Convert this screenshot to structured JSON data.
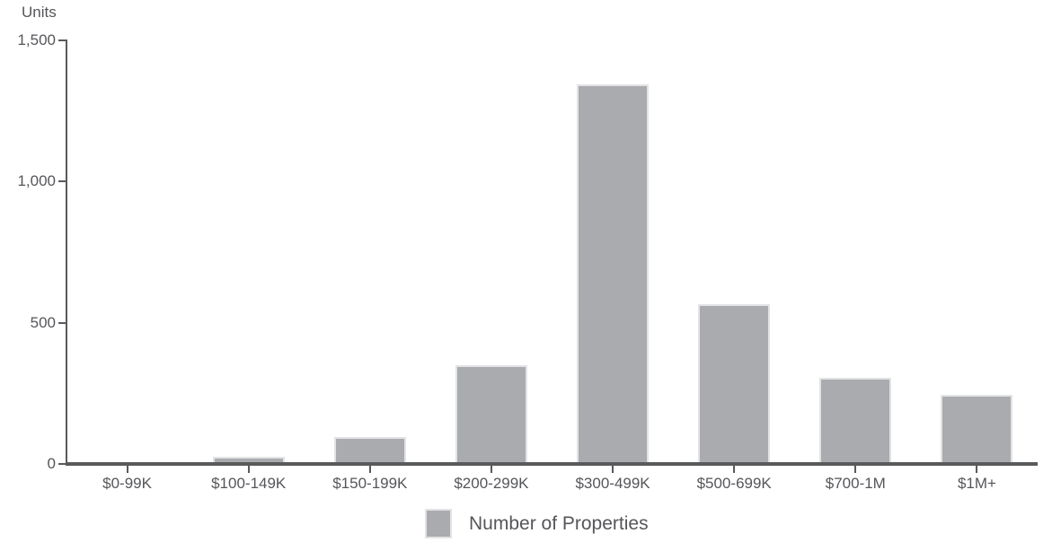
{
  "chart_data": {
    "type": "bar",
    "title": "",
    "ylabel": "Units",
    "xlabel": "",
    "categories": [
      "$0-99K",
      "$100-149K",
      "$150-199K",
      "$200-299K",
      "$300-499K",
      "$500-699K",
      "$700-1M",
      "$1M+"
    ],
    "values": [
      3,
      25,
      95,
      350,
      1345,
      565,
      305,
      245
    ],
    "ylim": [
      0,
      1500
    ],
    "yticks": [
      {
        "value": 0,
        "label": "0"
      },
      {
        "value": 500,
        "label": "500"
      },
      {
        "value": 1000,
        "label": "1,000"
      },
      {
        "value": 1500,
        "label": "1,500"
      }
    ],
    "grid": false,
    "legend_position": "bottom",
    "legend": [
      {
        "label": "Number of Properties",
        "color": "#a9abae"
      }
    ]
  },
  "colors": {
    "bar_fill": "#a9abae",
    "bar_edge": "#e2e3e4",
    "axis": "#595a5c",
    "text": "#55565a",
    "background": "#ffffff"
  }
}
